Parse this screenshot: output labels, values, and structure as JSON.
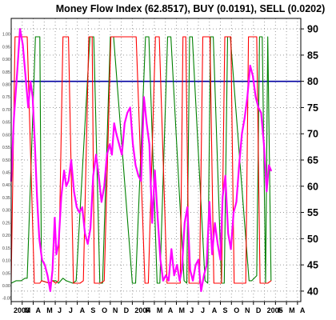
{
  "chart_data": {
    "type": "line",
    "title": "Money Flow Index (62.8517), BUY (0.0191), SELL (0.0202)",
    "colors": {
      "mfi": "#ff00ff",
      "buy": "#008000",
      "sell": "#ff0000",
      "reference": "#0000a0",
      "grid": "#9a9a9a",
      "background": "#ffffff"
    },
    "right_axis": {
      "ticks": [
        "90",
        "85",
        "80",
        "75",
        "70",
        "65",
        "60",
        "55",
        "50",
        "45",
        "40"
      ],
      "ylim": [
        38,
        92
      ]
    },
    "left_axis": {
      "ticks": [
        "1.00",
        "0.95",
        "0.90",
        "0.85",
        "0.80",
        "0.75",
        "0.70",
        "0.65",
        "0.60",
        "0.55",
        "0.50",
        "0.45",
        "0.40",
        "0.35",
        "0.30",
        "0.25",
        "0.20",
        "0.15",
        "0.10",
        "0.05",
        "0.00",
        "-0.05"
      ],
      "ylim": [
        -0.063,
        1.063
      ]
    },
    "x_axis": {
      "ticks": [
        "2003",
        "M",
        "A",
        "M",
        "J",
        "J",
        "A",
        "S",
        "O",
        "N",
        "D",
        "2004",
        "F",
        "M",
        "A",
        "M",
        "J",
        "J",
        "A",
        "S",
        "O",
        "N",
        "D",
        "2005",
        "F",
        "M",
        "A"
      ],
      "xlim": [
        0,
        26.3
      ]
    },
    "grid": true,
    "reference_line": {
      "axis": "right",
      "value": 80
    },
    "series": [
      {
        "key": "mfi",
        "axis": "right",
        "x": [
          0,
          0.25,
          0.55,
          0.8,
          1.05,
          1.3,
          1.55,
          1.75,
          1.95,
          2.15,
          2.35,
          2.55,
          2.8,
          3.05,
          3.3,
          3.55,
          3.75,
          3.95,
          4.1,
          4.3,
          4.55,
          4.8,
          5.0,
          5.2,
          5.45,
          5.7,
          5.95,
          6.2,
          6.45,
          6.7,
          6.95,
          7.2,
          7.45,
          7.7,
          7.95,
          8.2,
          8.45,
          8.7,
          8.95,
          9.15,
          9.35,
          9.55,
          9.8,
          10.05,
          10.3,
          10.55,
          10.8,
          11.05,
          11.3,
          11.55,
          11.8,
          12.05,
          12.3,
          12.55,
          12.8,
          13.05,
          13.3,
          13.55,
          13.8,
          14.05,
          14.3,
          14.55,
          14.8,
          15.05,
          15.3,
          15.5,
          15.75,
          16.0,
          16.25,
          16.5,
          16.75,
          17.0,
          17.25,
          17.5,
          17.75,
          18.0,
          18.25,
          18.5,
          18.75,
          19.0,
          19.2,
          19.45,
          19.7,
          19.95,
          20.2,
          20.45,
          20.7,
          20.95,
          21.2,
          21.45,
          21.7,
          21.95,
          22.2,
          22.45,
          22.7,
          22.95,
          23.2,
          23.4,
          23.6
        ],
        "values": [
          61,
          73,
          82,
          90,
          87,
          81,
          75,
          80,
          77,
          68,
          58,
          50,
          46,
          45,
          43,
          40,
          44,
          54,
          47,
          49,
          58,
          63,
          60,
          61,
          65,
          59,
          56,
          55,
          56,
          51,
          49,
          52,
          62,
          66,
          62,
          57,
          60,
          66,
          68,
          66,
          72,
          70,
          68,
          66,
          72,
          74,
          75,
          68,
          64,
          62,
          61,
          77,
          72,
          68,
          53,
          63,
          54,
          46,
          42,
          43,
          42,
          48,
          43,
          45,
          42,
          44,
          53,
          56,
          44,
          42,
          45,
          46,
          40,
          43,
          45,
          57,
          47,
          53,
          49,
          46,
          58,
          62,
          51,
          48,
          55,
          57,
          64,
          70,
          73,
          77,
          83,
          81,
          77,
          75,
          74,
          68,
          59,
          64,
          63
        ]
      },
      {
        "key": "buy",
        "axis": "left",
        "x": [
          0,
          0.45,
          0.65,
          0.9,
          1.25,
          1.45,
          2.2,
          2.6,
          2.75,
          3.5,
          3.75,
          4.05,
          4.3,
          4.7,
          5.0,
          5.6,
          5.9,
          7.15,
          7.5,
          8.05,
          8.3,
          9.0,
          9.3,
          11.0,
          11.3,
          12.2,
          12.5,
          13.25,
          13.5,
          14.2,
          14.5,
          15.7,
          15.95,
          16.2,
          16.45,
          17.6,
          17.85,
          18.1,
          18.35,
          19.1,
          19.35,
          19.65,
          19.9,
          21.6,
          21.85,
          22.3,
          22.55,
          22.8,
          23.1,
          23.3,
          23.6
        ],
        "values": [
          0.01,
          0.02,
          0.02,
          0.02,
          0.03,
          0.03,
          0.99,
          0.99,
          0.02,
          0.01,
          0.02,
          0.02,
          0.01,
          0.03,
          0.02,
          0.01,
          0.02,
          0.99,
          0.99,
          0.01,
          0.01,
          0.99,
          0.99,
          0.01,
          0.01,
          0.99,
          0.99,
          0.01,
          0.01,
          0.99,
          0.99,
          0.02,
          0.01,
          0.99,
          0.99,
          0.02,
          0.01,
          0.99,
          0.99,
          0.01,
          0.01,
          0.99,
          0.99,
          0.02,
          0.02,
          0.04,
          0.99,
          0.99,
          0.01,
          0.99,
          0.02
        ]
      },
      {
        "key": "sell",
        "axis": "left",
        "x": [
          0,
          0.35,
          0.65,
          0.9,
          1.05,
          1.25,
          1.45,
          2.1,
          2.6,
          2.75,
          3.45,
          3.75,
          4.05,
          4.3,
          4.7,
          5.0,
          5.2,
          5.65,
          5.95,
          6.25,
          6.55,
          7.05,
          7.35,
          7.55,
          7.85,
          8.1,
          8.45,
          9.05,
          9.35,
          10.2,
          10.5,
          11.05,
          11.35,
          12.15,
          12.45,
          13.1,
          13.45,
          14.15,
          14.5,
          15.35,
          15.6,
          15.85,
          16.15,
          17.1,
          17.4,
          18.05,
          18.4,
          19.1,
          19.4,
          19.95,
          20.25,
          21.3,
          21.55,
          22.3,
          22.6,
          23.3,
          23.6
        ],
        "values": [
          0.02,
          0.99,
          0.99,
          0.99,
          0.99,
          0.99,
          0.99,
          0.01,
          0.01,
          0.02,
          0.01,
          0.02,
          0.01,
          0.02,
          0.99,
          0.99,
          0.99,
          0.01,
          0.01,
          0.01,
          0.02,
          0.99,
          0.99,
          0.01,
          0.01,
          0.01,
          0.02,
          0.99,
          0.99,
          0.99,
          0.99,
          0.99,
          0.99,
          0.01,
          0.01,
          0.99,
          0.99,
          0.01,
          0.01,
          0.01,
          0.99,
          0.99,
          0.01,
          0.01,
          0.99,
          0.99,
          0.01,
          0.01,
          0.99,
          0.99,
          0.01,
          0.01,
          0.99,
          0.99,
          0.01,
          0.01,
          0.02
        ]
      }
    ]
  }
}
